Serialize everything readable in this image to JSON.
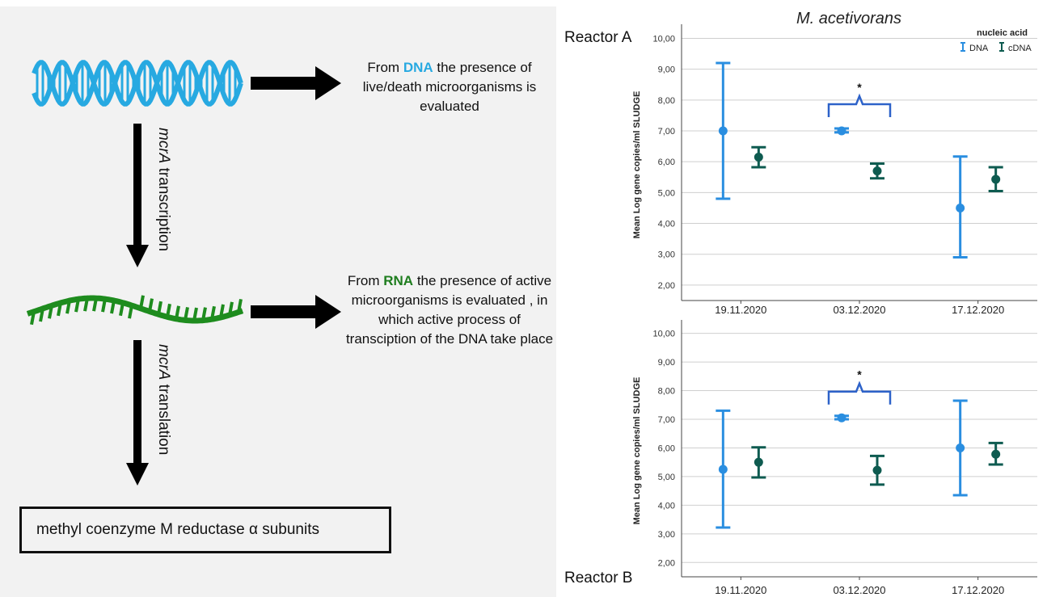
{
  "schematic": {
    "dna_text_pre": "From ",
    "dna_word": "DNA",
    "dna_text_post": " the presence of live/death microorganisms is evaluated",
    "rna_text_pre": "From ",
    "rna_word": "RNA",
    "rna_text_post": " the presence of active microorganisms is evaluated , in which active process of transciption of the DNA take place",
    "transcription_gene": "mcrA",
    "transcription_word": " transcription",
    "translation_gene": "mcrA",
    "translation_word": " translation",
    "product": "methyl coenzyme M reductase α subunits",
    "colors": {
      "dna": "#27a9e1",
      "rna": "#1e8c1e",
      "arrow": "#000000"
    }
  },
  "chart_title": "M. acetivorans",
  "chart_data": [
    {
      "type": "errorbar",
      "panel_label": "Reactor A",
      "ylabel": "Mean Log gene copies/ml SLUDGE",
      "ylim": [
        1.5,
        10.3
      ],
      "yticks": [
        "2,00",
        "3,00",
        "4,00",
        "5,00",
        "6,00",
        "7,00",
        "8,00",
        "9,00",
        "10,00"
      ],
      "categories": [
        "19.11.2020",
        "03.12.2020",
        "17.12.2020"
      ],
      "legend_title": "nucleic acid",
      "legend_position": "top-right",
      "significance": {
        "category": "03.12.2020",
        "label": "*"
      },
      "series": [
        {
          "name": "DNA",
          "color": "#2a8ee0",
          "mean": [
            7.0,
            7.0,
            4.5
          ],
          "lower": [
            4.8,
            6.95,
            2.9
          ],
          "upper": [
            9.2,
            7.08,
            6.17
          ]
        },
        {
          "name": "cDNA",
          "color": "#0e5b50",
          "mean": [
            6.15,
            5.7,
            5.43
          ],
          "lower": [
            5.82,
            5.46,
            5.05
          ],
          "upper": [
            6.47,
            5.94,
            5.82
          ]
        }
      ]
    },
    {
      "type": "errorbar",
      "panel_label": "Reactor B",
      "ylabel": "Mean Log gene copies/ml SLUDGE",
      "ylim": [
        1.5,
        10.3
      ],
      "yticks": [
        "2,00",
        "3,00",
        "4,00",
        "5,00",
        "6,00",
        "7,00",
        "8,00",
        "9,00",
        "10,00"
      ],
      "categories": [
        "19.11.2020",
        "03.12.2020",
        "17.12.2020"
      ],
      "significance": {
        "category": "03.12.2020",
        "label": "*"
      },
      "series": [
        {
          "name": "DNA",
          "color": "#2a8ee0",
          "mean": [
            5.25,
            7.05,
            6.0
          ],
          "lower": [
            3.22,
            7.0,
            4.35
          ],
          "upper": [
            7.3,
            7.12,
            7.65
          ]
        },
        {
          "name": "cDNA",
          "color": "#0e5b50",
          "mean": [
            5.5,
            5.22,
            5.78
          ],
          "lower": [
            4.97,
            4.72,
            5.42
          ],
          "upper": [
            6.02,
            5.72,
            6.17
          ]
        }
      ]
    }
  ]
}
